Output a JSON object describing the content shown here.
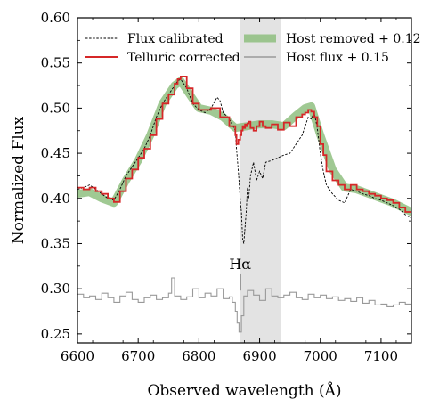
{
  "chart_data": {
    "type": "line",
    "xlabel": "Observed wavelength (Å)",
    "ylabel": "Normalized Flux",
    "xlim": [
      6600,
      7150
    ],
    "ylim": [
      0.24,
      0.6
    ],
    "xticks": [
      6600,
      6700,
      6800,
      6900,
      7000,
      7100
    ],
    "yticks": [
      0.25,
      0.3,
      0.35,
      0.4,
      0.45,
      0.5,
      0.55,
      0.6
    ],
    "xtick_labels": [
      "6600",
      "6700",
      "6800",
      "6900",
      "7000",
      "7100"
    ],
    "ytick_labels": [
      "0.25",
      "0.30",
      "0.35",
      "0.40",
      "0.45",
      "0.50",
      "0.55",
      "0.60"
    ],
    "shaded_region": {
      "x": [
        6867,
        6935
      ],
      "color": "#e3e3e3"
    },
    "annotation": {
      "text": "Hα",
      "x": 6868,
      "y": 0.322,
      "tick_y": [
        0.298,
        0.316
      ]
    },
    "legend": "top",
    "series": [
      {
        "name": "Flux calibrated",
        "style": "dashed",
        "color": "#000000",
        "x": [
          6600,
          6610,
          6620,
          6630,
          6640,
          6650,
          6660,
          6670,
          6680,
          6690,
          6700,
          6710,
          6720,
          6730,
          6740,
          6750,
          6760,
          6765,
          6770,
          6780,
          6790,
          6800,
          6810,
          6820,
          6830,
          6835,
          6840,
          6850,
          6860,
          6862,
          6865,
          6868,
          6870,
          6872,
          6874,
          6876,
          6878,
          6880,
          6882,
          6885,
          6890,
          6895,
          6900,
          6905,
          6910,
          6920,
          6930,
          6940,
          6950,
          6960,
          6970,
          6975,
          6980,
          6985,
          6990,
          6995,
          7000,
          7005,
          7010,
          7020,
          7030,
          7040,
          7050,
          7060,
          7070,
          7080,
          7090,
          7100,
          7110,
          7120,
          7130,
          7140,
          7150
        ],
        "y": [
          0.41,
          0.412,
          0.415,
          0.41,
          0.405,
          0.4,
          0.398,
          0.41,
          0.425,
          0.435,
          0.445,
          0.455,
          0.47,
          0.49,
          0.505,
          0.515,
          0.525,
          0.53,
          0.532,
          0.522,
          0.505,
          0.498,
          0.495,
          0.5,
          0.512,
          0.508,
          0.495,
          0.488,
          0.475,
          0.455,
          0.43,
          0.4,
          0.385,
          0.355,
          0.35,
          0.368,
          0.385,
          0.412,
          0.4,
          0.425,
          0.44,
          0.42,
          0.43,
          0.422,
          0.44,
          0.442,
          0.445,
          0.448,
          0.45,
          0.46,
          0.47,
          0.48,
          0.49,
          0.488,
          0.495,
          0.478,
          0.45,
          0.43,
          0.415,
          0.405,
          0.398,
          0.395,
          0.41,
          0.408,
          0.405,
          0.403,
          0.4,
          0.398,
          0.395,
          0.392,
          0.388,
          0.382,
          0.378
        ]
      },
      {
        "name": "Telluric corrected",
        "style": "step",
        "color": "#d62728",
        "x": [
          6600,
          6610,
          6620,
          6630,
          6640,
          6650,
          6660,
          6670,
          6680,
          6690,
          6700,
          6710,
          6720,
          6730,
          6740,
          6750,
          6760,
          6765,
          6770,
          6780,
          6790,
          6800,
          6810,
          6820,
          6830,
          6835,
          6840,
          6850,
          6860,
          6862,
          6865,
          6868,
          6870,
          6872,
          6874,
          6876,
          6878,
          6880,
          6882,
          6885,
          6890,
          6895,
          6900,
          6905,
          6910,
          6920,
          6930,
          6940,
          6950,
          6960,
          6970,
          6975,
          6980,
          6985,
          6990,
          6995,
          7000,
          7005,
          7010,
          7020,
          7030,
          7040,
          7050,
          7060,
          7070,
          7080,
          7090,
          7100,
          7110,
          7120,
          7130,
          7140,
          7150
        ],
        "y": [
          0.412,
          0.41,
          0.412,
          0.408,
          0.405,
          0.4,
          0.396,
          0.408,
          0.422,
          0.432,
          0.445,
          0.455,
          0.47,
          0.488,
          0.505,
          0.515,
          0.527,
          0.532,
          0.535,
          0.522,
          0.505,
          0.498,
          0.498,
          0.5,
          0.5,
          0.49,
          0.49,
          0.48,
          0.47,
          0.46,
          0.465,
          0.47,
          0.475,
          0.48,
          0.478,
          0.482,
          0.48,
          0.483,
          0.485,
          0.478,
          0.475,
          0.48,
          0.485,
          0.48,
          0.478,
          0.482,
          0.476,
          0.484,
          0.48,
          0.49,
          0.493,
          0.495,
          0.498,
          0.496,
          0.49,
          0.48,
          0.46,
          0.448,
          0.43,
          0.42,
          0.415,
          0.41,
          0.415,
          0.41,
          0.408,
          0.405,
          0.403,
          0.4,
          0.398,
          0.395,
          0.39,
          0.385,
          0.38
        ]
      },
      {
        "name": "Host removed + 0.12",
        "style": "band",
        "color": "#8fbf80",
        "x": [
          6600,
          6620,
          6640,
          6660,
          6680,
          6700,
          6720,
          6740,
          6760,
          6770,
          6780,
          6800,
          6820,
          6840,
          6860,
          6880,
          6900,
          6920,
          6940,
          6960,
          6975,
          6985,
          7000,
          7020,
          7040,
          7060,
          7080,
          7100,
          7120,
          7150
        ],
        "y": [
          0.405,
          0.407,
          0.4,
          0.395,
          0.42,
          0.442,
          0.47,
          0.505,
          0.525,
          0.53,
          0.52,
          0.5,
          0.497,
          0.49,
          0.478,
          0.48,
          0.482,
          0.482,
          0.48,
          0.492,
          0.5,
          0.502,
          0.47,
          0.432,
          0.412,
          0.41,
          0.405,
          0.4,
          0.395,
          0.385
        ]
      },
      {
        "name": "Host flux + 0.15",
        "style": "step",
        "color": "#999999",
        "x": [
          6600,
          6610,
          6620,
          6630,
          6640,
          6650,
          6660,
          6670,
          6680,
          6690,
          6700,
          6710,
          6720,
          6730,
          6740,
          6750,
          6755,
          6760,
          6770,
          6780,
          6790,
          6800,
          6810,
          6820,
          6830,
          6840,
          6850,
          6855,
          6860,
          6863,
          6866,
          6870,
          6874,
          6880,
          6890,
          6900,
          6910,
          6920,
          6930,
          6940,
          6950,
          6960,
          6970,
          6980,
          6990,
          7000,
          7010,
          7020,
          7030,
          7040,
          7050,
          7060,
          7070,
          7080,
          7090,
          7100,
          7110,
          7120,
          7130,
          7140,
          7150
        ],
        "y": [
          0.294,
          0.29,
          0.292,
          0.288,
          0.295,
          0.29,
          0.285,
          0.292,
          0.296,
          0.288,
          0.285,
          0.29,
          0.293,
          0.288,
          0.29,
          0.295,
          0.312,
          0.292,
          0.288,
          0.291,
          0.3,
          0.29,
          0.295,
          0.292,
          0.3,
          0.289,
          0.291,
          0.285,
          0.275,
          0.262,
          0.252,
          0.27,
          0.292,
          0.298,
          0.293,
          0.287,
          0.3,
          0.292,
          0.29,
          0.293,
          0.296,
          0.29,
          0.288,
          0.294,
          0.29,
          0.293,
          0.289,
          0.291,
          0.287,
          0.289,
          0.286,
          0.29,
          0.284,
          0.287,
          0.282,
          0.283,
          0.28,
          0.282,
          0.285,
          0.283,
          0.284
        ]
      }
    ]
  }
}
